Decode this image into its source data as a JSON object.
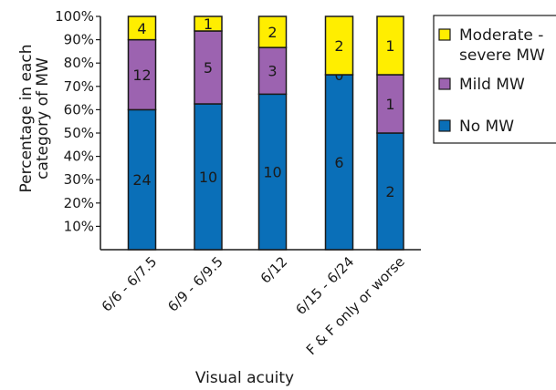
{
  "chart_data": {
    "type": "bar",
    "stacked": true,
    "percent_stacked": true,
    "xlabel": "Visual acuity",
    "ylabel_lines": [
      "Percentage in each",
      "category of MW"
    ],
    "ylim": [
      0,
      100
    ],
    "y_ticks": [
      "10%",
      "20%",
      "30%",
      "40%",
      "50%",
      "60%",
      "70%",
      "80%",
      "90%",
      "100%"
    ],
    "categories": [
      "6/6 - 6/7.5",
      "6/9 - 6/9.5",
      "6/12",
      "6/15 - 6/24",
      "F & F only or worse"
    ],
    "series": [
      {
        "name": "No MW",
        "color": "#0a6fb8",
        "counts": [
          24,
          10,
          10,
          6,
          2
        ],
        "count_labels": [
          "24",
          "10",
          "10",
          "6",
          "2"
        ]
      },
      {
        "name": "Mild MW",
        "color": "#9c63b0",
        "counts": [
          12,
          5,
          3,
          0,
          1
        ],
        "count_labels": [
          "12",
          "5",
          "3",
          "0",
          "1"
        ]
      },
      {
        "name": "Moderate - severe MW",
        "legend_lines": [
          "Moderate -",
          "severe MW"
        ],
        "color": "#ffee00",
        "counts": [
          4,
          1,
          2,
          2,
          1
        ],
        "count_labels": [
          "4",
          "1",
          "2",
          "2",
          "1"
        ]
      }
    ],
    "legend": {
      "position": "top-right",
      "order": [
        2,
        1,
        0
      ]
    },
    "grid": false
  }
}
